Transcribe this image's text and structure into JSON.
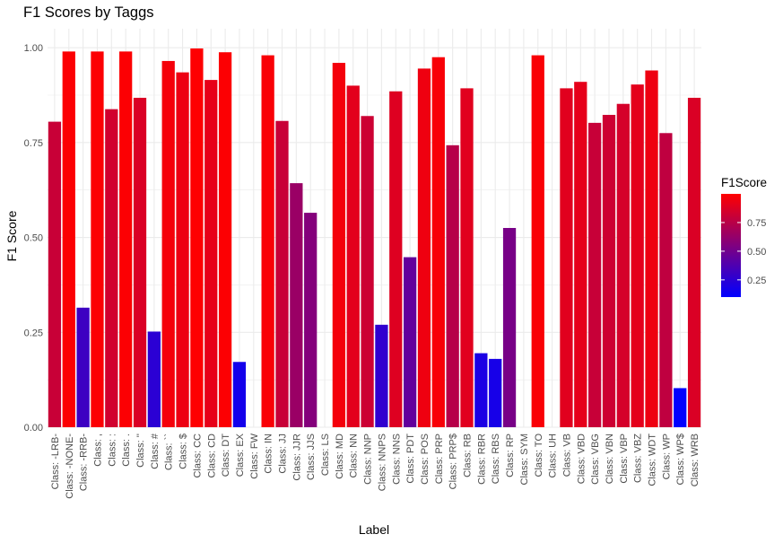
{
  "chart_data": {
    "type": "bar",
    "title": "F1 Scores by Taggs",
    "xlabel": "Label",
    "ylabel": "F1 Score",
    "ylim": [
      0,
      1.05
    ],
    "yticks": [
      "0.00",
      "0.25",
      "0.50",
      "0.75",
      "1.00"
    ],
    "grid": true,
    "legend": {
      "title": "F1Score",
      "position": "right",
      "labels": [
        "0.25",
        "0.50",
        "0.75"
      ],
      "low_color": "#0000FF",
      "high_color": "#FF0000",
      "min": 0.1,
      "max": 1.0
    },
    "categories": [
      "Class: -LRB-",
      "Class: -NONE-",
      "Class: -RRB-",
      "Class: ,",
      "Class: :",
      "Class: .",
      "Class: ''",
      "Class: #",
      "Class: ``",
      "Class: $",
      "Class: CC",
      "Class: CD",
      "Class: DT",
      "Class: EX",
      "Class: FW",
      "Class: IN",
      "Class: JJ",
      "Class: JJR",
      "Class: JJS",
      "Class: LS",
      "Class: MD",
      "Class: NN",
      "Class: NNP",
      "Class: NNPS",
      "Class: NNS",
      "Class: PDT",
      "Class: POS",
      "Class: PRP",
      "Class: PRP$",
      "Class: RB",
      "Class: RBR",
      "Class: RBS",
      "Class: RP",
      "Class: SYM",
      "Class: TO",
      "Class: UH",
      "Class: VB",
      "Class: VBD",
      "Class: VBG",
      "Class: VBN",
      "Class: VBP",
      "Class: VBZ",
      "Class: WDT",
      "Class: WP",
      "Class: WP$",
      "Class: WRB"
    ],
    "values": [
      0.805,
      0.99,
      0.315,
      0.99,
      0.838,
      0.99,
      0.868,
      0.252,
      0.965,
      0.935,
      0.998,
      0.915,
      0.988,
      0.172,
      0.0,
      0.98,
      0.807,
      0.643,
      0.565,
      0.0,
      0.96,
      0.9,
      0.82,
      0.27,
      0.885,
      0.448,
      0.945,
      0.975,
      0.743,
      0.893,
      0.195,
      0.18,
      0.525,
      0.0,
      0.98,
      0.0,
      0.893,
      0.91,
      0.802,
      0.823,
      0.852,
      0.903,
      0.94,
      0.775,
      0.103,
      0.868
    ]
  }
}
